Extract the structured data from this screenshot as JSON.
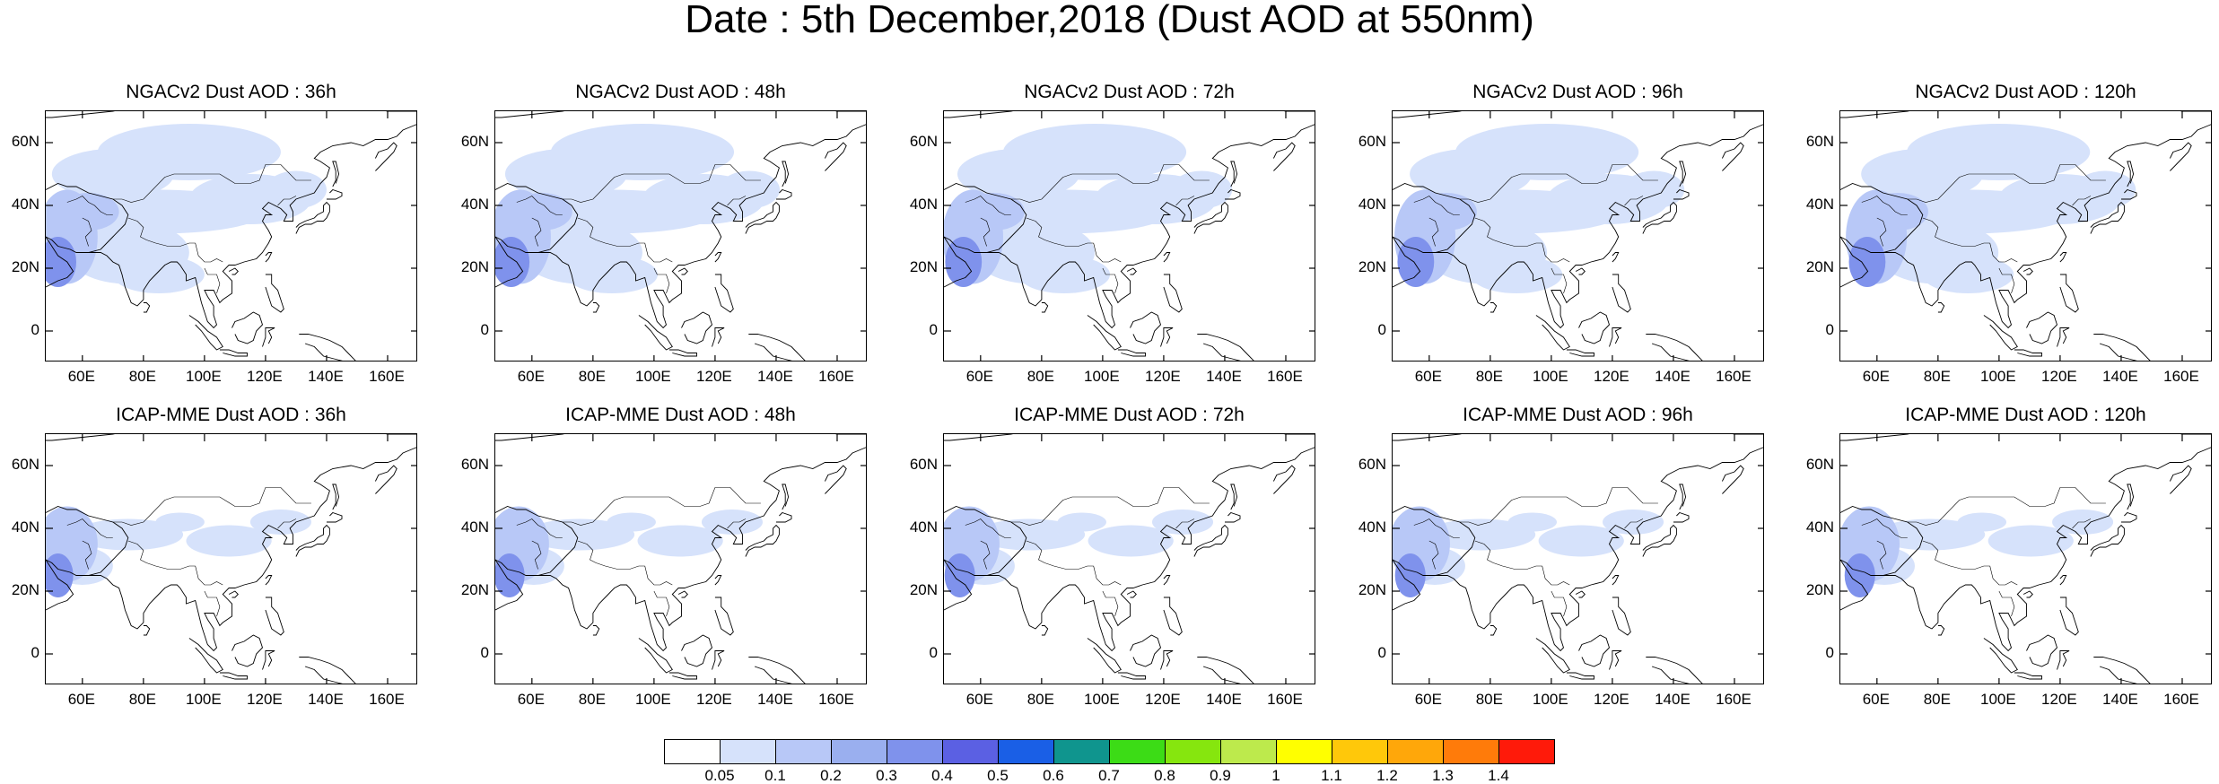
{
  "title": "Date : 5th December,2018 (Dust AOD at 550nm)",
  "panels": [
    {
      "title": "NGACv2 Dust AOD : 36h",
      "model": "NGACv2",
      "lead": "36h"
    },
    {
      "title": "NGACv2 Dust AOD : 48h",
      "model": "NGACv2",
      "lead": "48h"
    },
    {
      "title": "NGACv2 Dust AOD : 72h",
      "model": "NGACv2",
      "lead": "72h"
    },
    {
      "title": "NGACv2 Dust AOD : 96h",
      "model": "NGACv2",
      "lead": "96h"
    },
    {
      "title": "NGACv2 Dust AOD : 120h",
      "model": "NGACv2",
      "lead": "120h"
    },
    {
      "title": "ICAP-MME Dust AOD : 36h",
      "model": "ICAP-MME",
      "lead": "36h"
    },
    {
      "title": "ICAP-MME Dust AOD : 48h",
      "model": "ICAP-MME",
      "lead": "48h"
    },
    {
      "title": "ICAP-MME Dust AOD : 72h",
      "model": "ICAP-MME",
      "lead": "72h"
    },
    {
      "title": "ICAP-MME Dust AOD : 96h",
      "model": "ICAP-MME",
      "lead": "96h"
    },
    {
      "title": "ICAP-MME Dust AOD : 120h",
      "model": "ICAP-MME",
      "lead": "120h"
    }
  ],
  "map_extent": {
    "lon": [
      48,
      170
    ],
    "lat": [
      -10,
      70
    ]
  },
  "x_ticks": [
    {
      "value": 60,
      "label": "60E"
    },
    {
      "value": 80,
      "label": "80E"
    },
    {
      "value": 100,
      "label": "100E"
    },
    {
      "value": 120,
      "label": "120E"
    },
    {
      "value": 140,
      "label": "140E"
    },
    {
      "value": 160,
      "label": "160E"
    }
  ],
  "y_ticks": [
    {
      "value": 60,
      "label": "60N"
    },
    {
      "value": 40,
      "label": "40N"
    },
    {
      "value": 20,
      "label": "20N"
    },
    {
      "value": 0,
      "label": "0"
    }
  ],
  "colorbar": {
    "colors": [
      "#ffffff",
      "#d6e2fb",
      "#b8c8f7",
      "#9aafef",
      "#7f92ec",
      "#5b60e3",
      "#1a5fe6",
      "#0f958e",
      "#3cdc16",
      "#86e60e",
      "#bdea4c",
      "#ffff00",
      "#ffc80a",
      "#ffa70a",
      "#ff7b0a",
      "#ff1a0a"
    ],
    "labels": [
      "0.05",
      "0.1",
      "0.2",
      "0.3",
      "0.4",
      "0.5",
      "0.6",
      "0.7",
      "0.8",
      "0.9",
      "1",
      "1.1",
      "1.2",
      "1.3",
      "1.4"
    ]
  },
  "colors": {
    "coastline": "#000000",
    "light_dust": "#d6e2fb",
    "medium_dust": "#b8c8f7",
    "heavy_dust": "#7f92ec"
  }
}
